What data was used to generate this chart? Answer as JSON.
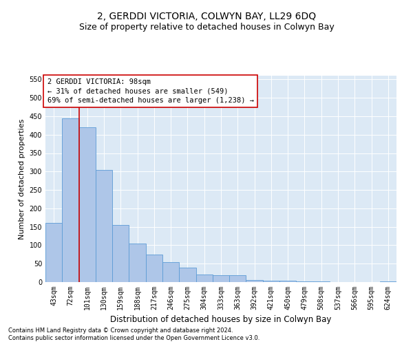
{
  "title": "2, GERDDI VICTORIA, COLWYN BAY, LL29 6DQ",
  "subtitle": "Size of property relative to detached houses in Colwyn Bay",
  "xlabel": "Distribution of detached houses by size in Colwyn Bay",
  "ylabel": "Number of detached properties",
  "footer_line1": "Contains HM Land Registry data © Crown copyright and database right 2024.",
  "footer_line2": "Contains public sector information licensed under the Open Government Licence v3.0.",
  "bar_labels": [
    "43sqm",
    "72sqm",
    "101sqm",
    "130sqm",
    "159sqm",
    "188sqm",
    "217sqm",
    "246sqm",
    "275sqm",
    "304sqm",
    "333sqm",
    "363sqm",
    "392sqm",
    "421sqm",
    "450sqm",
    "479sqm",
    "508sqm",
    "537sqm",
    "566sqm",
    "595sqm",
    "624sqm"
  ],
  "bar_values": [
    160,
    445,
    420,
    305,
    155,
    105,
    75,
    55,
    40,
    20,
    18,
    18,
    5,
    4,
    3,
    2,
    1,
    0,
    0,
    0,
    1
  ],
  "bar_color": "#aec6e8",
  "bar_edge_color": "#5b9bd5",
  "annotation_text": "2 GERDDI VICTORIA: 98sqm\n← 31% of detached houses are smaller (549)\n69% of semi-detached houses are larger (1,238) →",
  "annotation_box_color": "#ffffff",
  "annotation_box_edge_color": "#cc0000",
  "vline_color": "#cc0000",
  "ylim": [
    0,
    560
  ],
  "yticks": [
    0,
    50,
    100,
    150,
    200,
    250,
    300,
    350,
    400,
    450,
    500,
    550
  ],
  "background_color": "#dce9f5",
  "title_fontsize": 10,
  "subtitle_fontsize": 9,
  "xlabel_fontsize": 8.5,
  "ylabel_fontsize": 8,
  "tick_fontsize": 7,
  "annotation_fontsize": 7.5,
  "footer_fontsize": 6
}
